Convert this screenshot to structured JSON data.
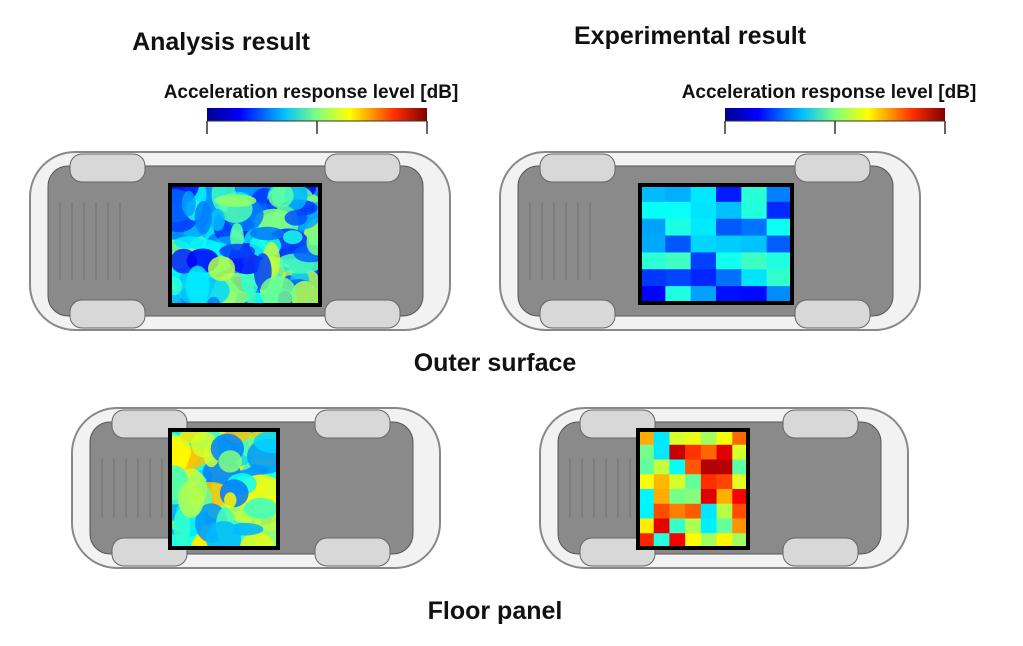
{
  "panels": {
    "analysis": {
      "title": "Analysis result",
      "colorbar_label": "Acceleration response level [dB]"
    },
    "experimental": {
      "title": "Experimental result",
      "colorbar_label": "Acceleration response level [dB]"
    }
  },
  "rows": [
    "Outer surface",
    "Floor panel"
  ]
}
